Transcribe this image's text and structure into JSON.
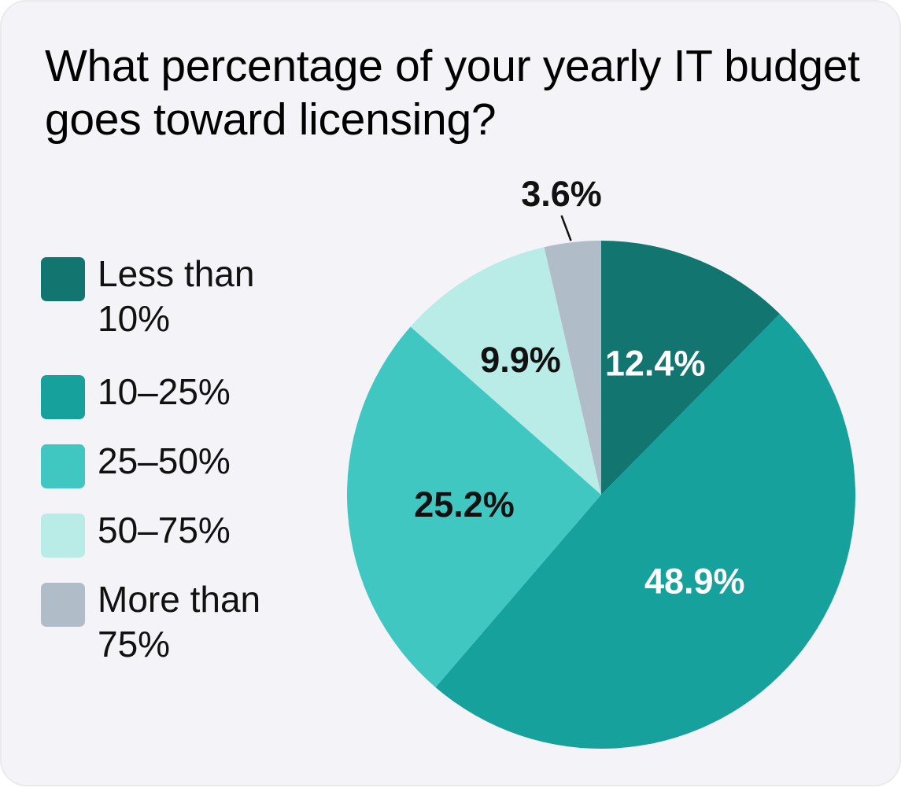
{
  "chart_data": {
    "type": "pie",
    "title": "What percentage of your yearly IT budget goes toward licensing?",
    "slices": [
      {
        "label": "Less than 10%",
        "value": 12.4,
        "display": "12.4%",
        "color": "#127570",
        "label_color": "#ffffff"
      },
      {
        "label": "10–25%",
        "value": 48.9,
        "display": "48.9%",
        "color": "#16a19c",
        "label_color": "#ffffff"
      },
      {
        "label": "25–50%",
        "value": 25.2,
        "display": "25.2%",
        "color": "#41c7c2",
        "label_color": "#111111"
      },
      {
        "label": "50–75%",
        "value": 9.9,
        "display": "9.9%",
        "color": "#b9ebe7",
        "label_color": "#111111"
      },
      {
        "label": "More than 75%",
        "value": 3.6,
        "display": "3.6%",
        "color": "#b0bcc7",
        "label_color": "#111111"
      }
    ],
    "legend_position": "left",
    "start_angle": "top",
    "direction": "clockwise"
  }
}
